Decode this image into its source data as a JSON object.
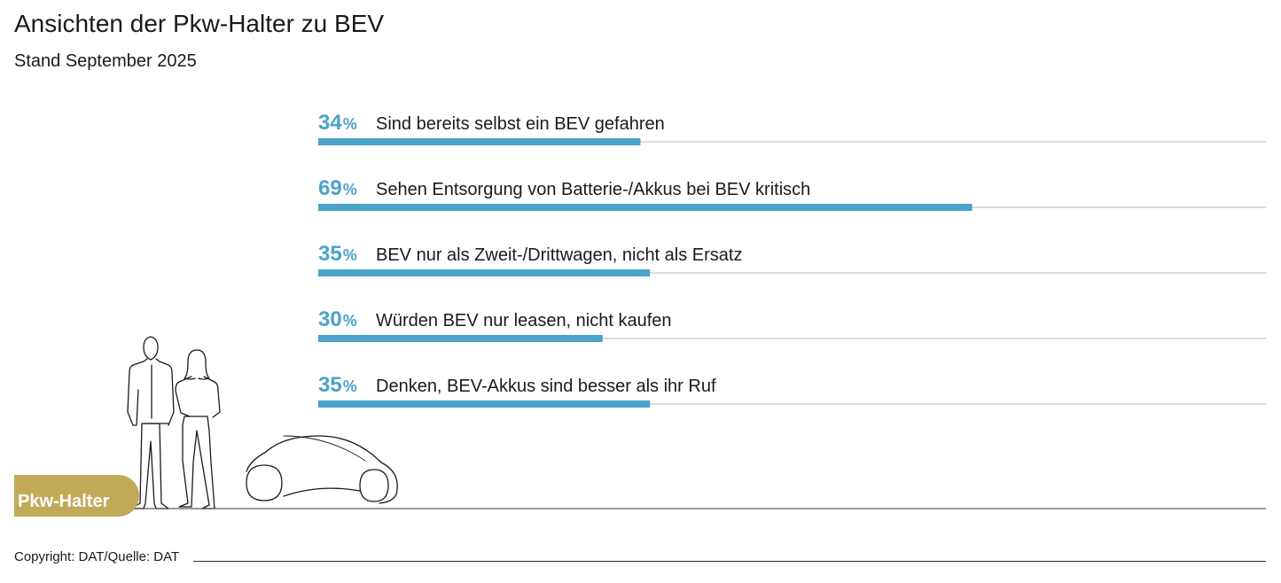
{
  "header": {
    "title": "Ansichten der Pkw-Halter zu BEV",
    "subtitle": "Stand September 2025"
  },
  "badge": {
    "label": "Pkw-Halter"
  },
  "footer": {
    "copyright": "Copyright: DAT/Quelle: DAT"
  },
  "colors": {
    "bar": "#4aa3c8",
    "percent": "#4aa3c8",
    "track": "#c8c8c8",
    "badge": "#c3aa59"
  },
  "chart_data": {
    "type": "bar",
    "orientation": "horizontal",
    "unit": "%",
    "xlim": [
      0,
      100
    ],
    "grid": false,
    "categories": [
      "Sind bereits selbst ein BEV gefahren",
      "Sehen Entsorgung von Batterie-/Akkus bei BEV kritisch",
      "BEV nur als Zweit-/Drittwagen, nicht als Ersatz",
      "Würden BEV nur leasen, nicht kaufen",
      "Denken, BEV-Akkus sind besser als ihr Ruf"
    ],
    "values": [
      34,
      69,
      35,
      30,
      35
    ]
  }
}
